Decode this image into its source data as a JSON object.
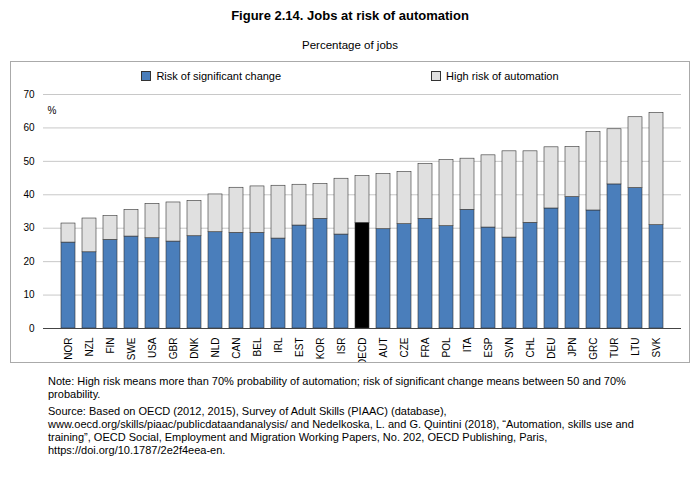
{
  "chart_data": {
    "type": "bar",
    "stacked": true,
    "title": "Figure 2.14. Jobs at risk of automation",
    "subtitle": "Percentage of jobs",
    "y_label": "%",
    "note": "Note: High risk means more than 70% probability of automation; risk of significant change means between 50 and 70% probability.",
    "source": "Source: Based on OECD (2012, 2015), Survey of Adult Skills (PIAAC) (database), www.oecd.org/skills/piaac/publicdataandanalysis/ and Nedelkoska, L. and G. Quintini (2018), “Automation, skills use and training”, OECD Social, Employment and Migration Working Papers, No. 202, OECD Publishing, Paris, https://doi.org/10.1787/2e2f4eea-en.",
    "legend": "top",
    "grid": true,
    "categories": [
      "NOR",
      "NZL",
      "FIN",
      "SWE",
      "USA",
      "GBR",
      "DNK",
      "NLD",
      "CAN",
      "BEL",
      "IRL",
      "EST",
      "KOR",
      "ISR",
      "OECD",
      "AUT",
      "CZE",
      "FRA",
      "POL",
      "ITA",
      "ESP",
      "SVN",
      "CHL",
      "DEU",
      "JPN",
      "GRC",
      "TUR",
      "LTU",
      "SVK"
    ],
    "series": [
      {
        "name": "Risk of significant change",
        "color": "#4a7ebb",
        "colors": [
          "#4a7ebb",
          "#4a7ebb",
          "#4a7ebb",
          "#4a7ebb",
          "#4a7ebb",
          "#4a7ebb",
          "#4a7ebb",
          "#4a7ebb",
          "#4a7ebb",
          "#4a7ebb",
          "#4a7ebb",
          "#4a7ebb",
          "#4a7ebb",
          "#4a7ebb",
          "#000000",
          "#4a7ebb",
          "#4a7ebb",
          "#4a7ebb",
          "#4a7ebb",
          "#4a7ebb",
          "#4a7ebb",
          "#4a7ebb",
          "#4a7ebb",
          "#4a7ebb",
          "#4a7ebb",
          "#4a7ebb",
          "#4a7ebb",
          "#4a7ebb",
          "#4a7ebb"
        ],
        "values": [
          25.7,
          22.8,
          26.5,
          27.5,
          27.0,
          26.0,
          27.6,
          28.8,
          28.6,
          28.6,
          26.9,
          30.8,
          32.8,
          28.1,
          31.6,
          29.7,
          31.2,
          32.8,
          30.6,
          35.5,
          30.2,
          27.2,
          31.6,
          35.9,
          39.3,
          35.3,
          43.1,
          42.0,
          30.9
        ]
      },
      {
        "name": "High risk of automation",
        "color": "#e0e0e0",
        "values": [
          5.7,
          10.1,
          7.1,
          8.0,
          10.3,
          11.7,
          10.6,
          11.3,
          13.5,
          13.9,
          15.8,
          12.2,
          10.4,
          16.7,
          14.0,
          16.5,
          15.6,
          16.4,
          19.8,
          15.3,
          21.6,
          25.8,
          21.4,
          18.3,
          15.0,
          23.5,
          16.5,
          21.2,
          33.6
        ]
      }
    ],
    "ylim": [
      0,
      70
    ],
    "yticks": [
      0,
      10,
      20,
      30,
      40,
      50,
      60,
      70
    ]
  }
}
